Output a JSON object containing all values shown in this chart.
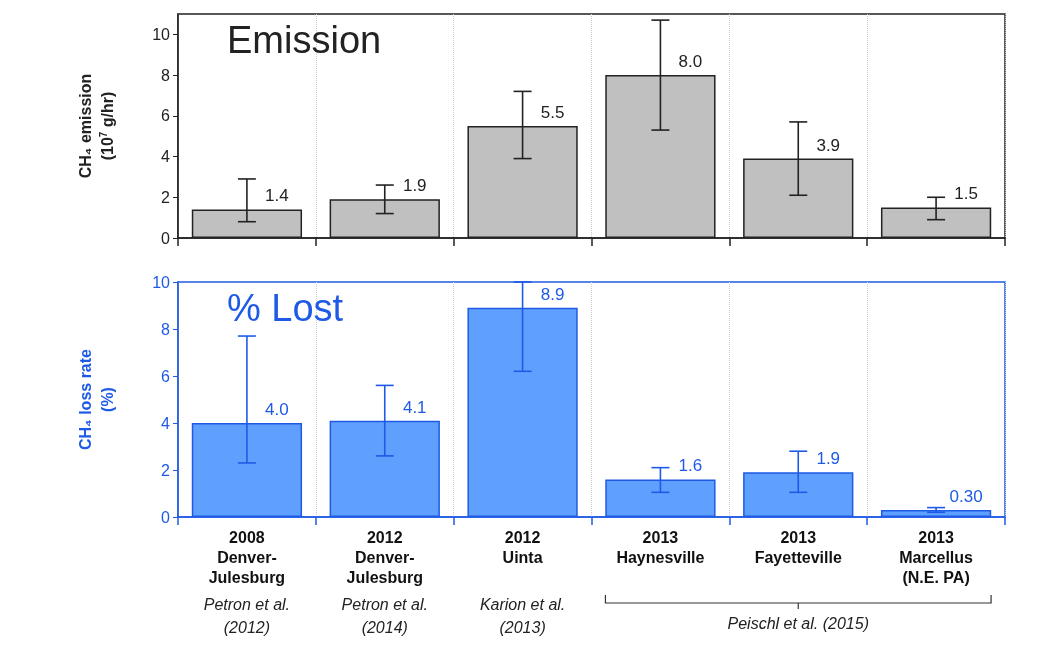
{
  "chart_data": [
    {
      "type": "bar",
      "title": "Emission",
      "ylabel": "CH₄ emission\n(10$^{7}$ g/hr)",
      "categories": [
        null,
        null,
        null,
        null,
        null,
        null
      ],
      "series": [
        {
          "color": "#c0c0c0",
          "values": [
            1.4,
            1.9,
            5.5,
            8.0,
            3.9,
            1.5
          ],
          "value_labels": [
            "1.4",
            "1.9",
            "5.5",
            "8.0",
            "3.9",
            "1.5"
          ],
          "errors": [
            [
              0.8,
              2.9
            ],
            [
              1.2,
              2.6
            ],
            [
              3.9,
              7.2
            ],
            [
              5.3,
              10.7
            ],
            [
              2.1,
              5.7
            ],
            [
              0.9,
              2.0
            ]
          ]
        }
      ],
      "ylim": [
        0,
        11
      ],
      "yticks": [
        0,
        2,
        4,
        6,
        8,
        10
      ],
      "grid": "x"
    },
    {
      "type": "bar",
      "title": "% Lost",
      "ylabel": "CH₄ loss rate\n(%)",
      "categories": [
        "2008\nDenver-\nJulesburg",
        "2012\nDenver-\nJulesburg",
        "2012\nUinta",
        "2013\nHaynesville",
        "2013\nFayetteville",
        "2013\nMarcellus\n(N.E. PA)"
      ],
      "series": [
        {
          "color": "#5fa0ff",
          "values": [
            4.0,
            4.1,
            8.9,
            1.6,
            1.9,
            0.3
          ],
          "value_labels": [
            "4.0",
            "4.1",
            "8.9",
            "1.6",
            "1.9",
            "0.30"
          ],
          "errors": [
            [
              2.3,
              7.7
            ],
            [
              2.6,
              5.6
            ],
            [
              6.2,
              10
            ],
            [
              1.05,
              2.1
            ],
            [
              1.05,
              2.8
            ],
            [
              0.2,
              0.4
            ]
          ]
        }
      ],
      "ylim": [
        0,
        10
      ],
      "yticks": [
        0,
        2,
        4,
        6,
        8,
        10
      ],
      "grid": "x",
      "annotations": [
        "Petron et al.\n(2012)",
        "Petron et al.\n(2014)",
        "Karion et al.\n(2013)",
        "Peischl et al. (2015)"
      ]
    }
  ]
}
